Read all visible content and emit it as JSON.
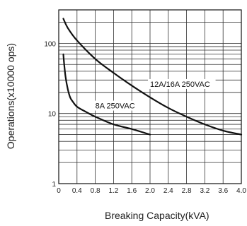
{
  "chart_data": {
    "type": "line",
    "title": "",
    "xlabel": "Breaking Capacity(kVA)",
    "ylabel": "Operations(x10000 ops)",
    "xlim": [
      0,
      4.0
    ],
    "ylim": [
      1,
      300
    ],
    "yscale": "log",
    "grid": true,
    "x_ticks": [
      "0",
      "0.4",
      "0.8",
      "1.2",
      "1.6",
      "2.0",
      "2.4",
      "2.8",
      "3.2",
      "3.6",
      "4.0"
    ],
    "y_ticks": [
      "1",
      "10",
      "100"
    ],
    "series": [
      {
        "name": "12A/16A 250VAC",
        "x": [
          0.1,
          0.2,
          0.4,
          0.8,
          1.2,
          1.6,
          2.0,
          2.4,
          2.8,
          3.2,
          3.6,
          4.0
        ],
        "y": [
          225,
          165,
          110,
          60,
          38,
          25,
          17,
          12,
          9,
          7,
          5.7,
          5
        ]
      },
      {
        "name": "8A 250VAC",
        "x": [
          0.1,
          0.12,
          0.15,
          0.2,
          0.25,
          0.3,
          0.4,
          0.6,
          0.8,
          1.2,
          1.6,
          2.0
        ],
        "y": [
          70,
          50,
          33,
          22,
          17,
          15,
          12.5,
          10.5,
          9,
          7,
          6,
          5
        ]
      }
    ]
  }
}
